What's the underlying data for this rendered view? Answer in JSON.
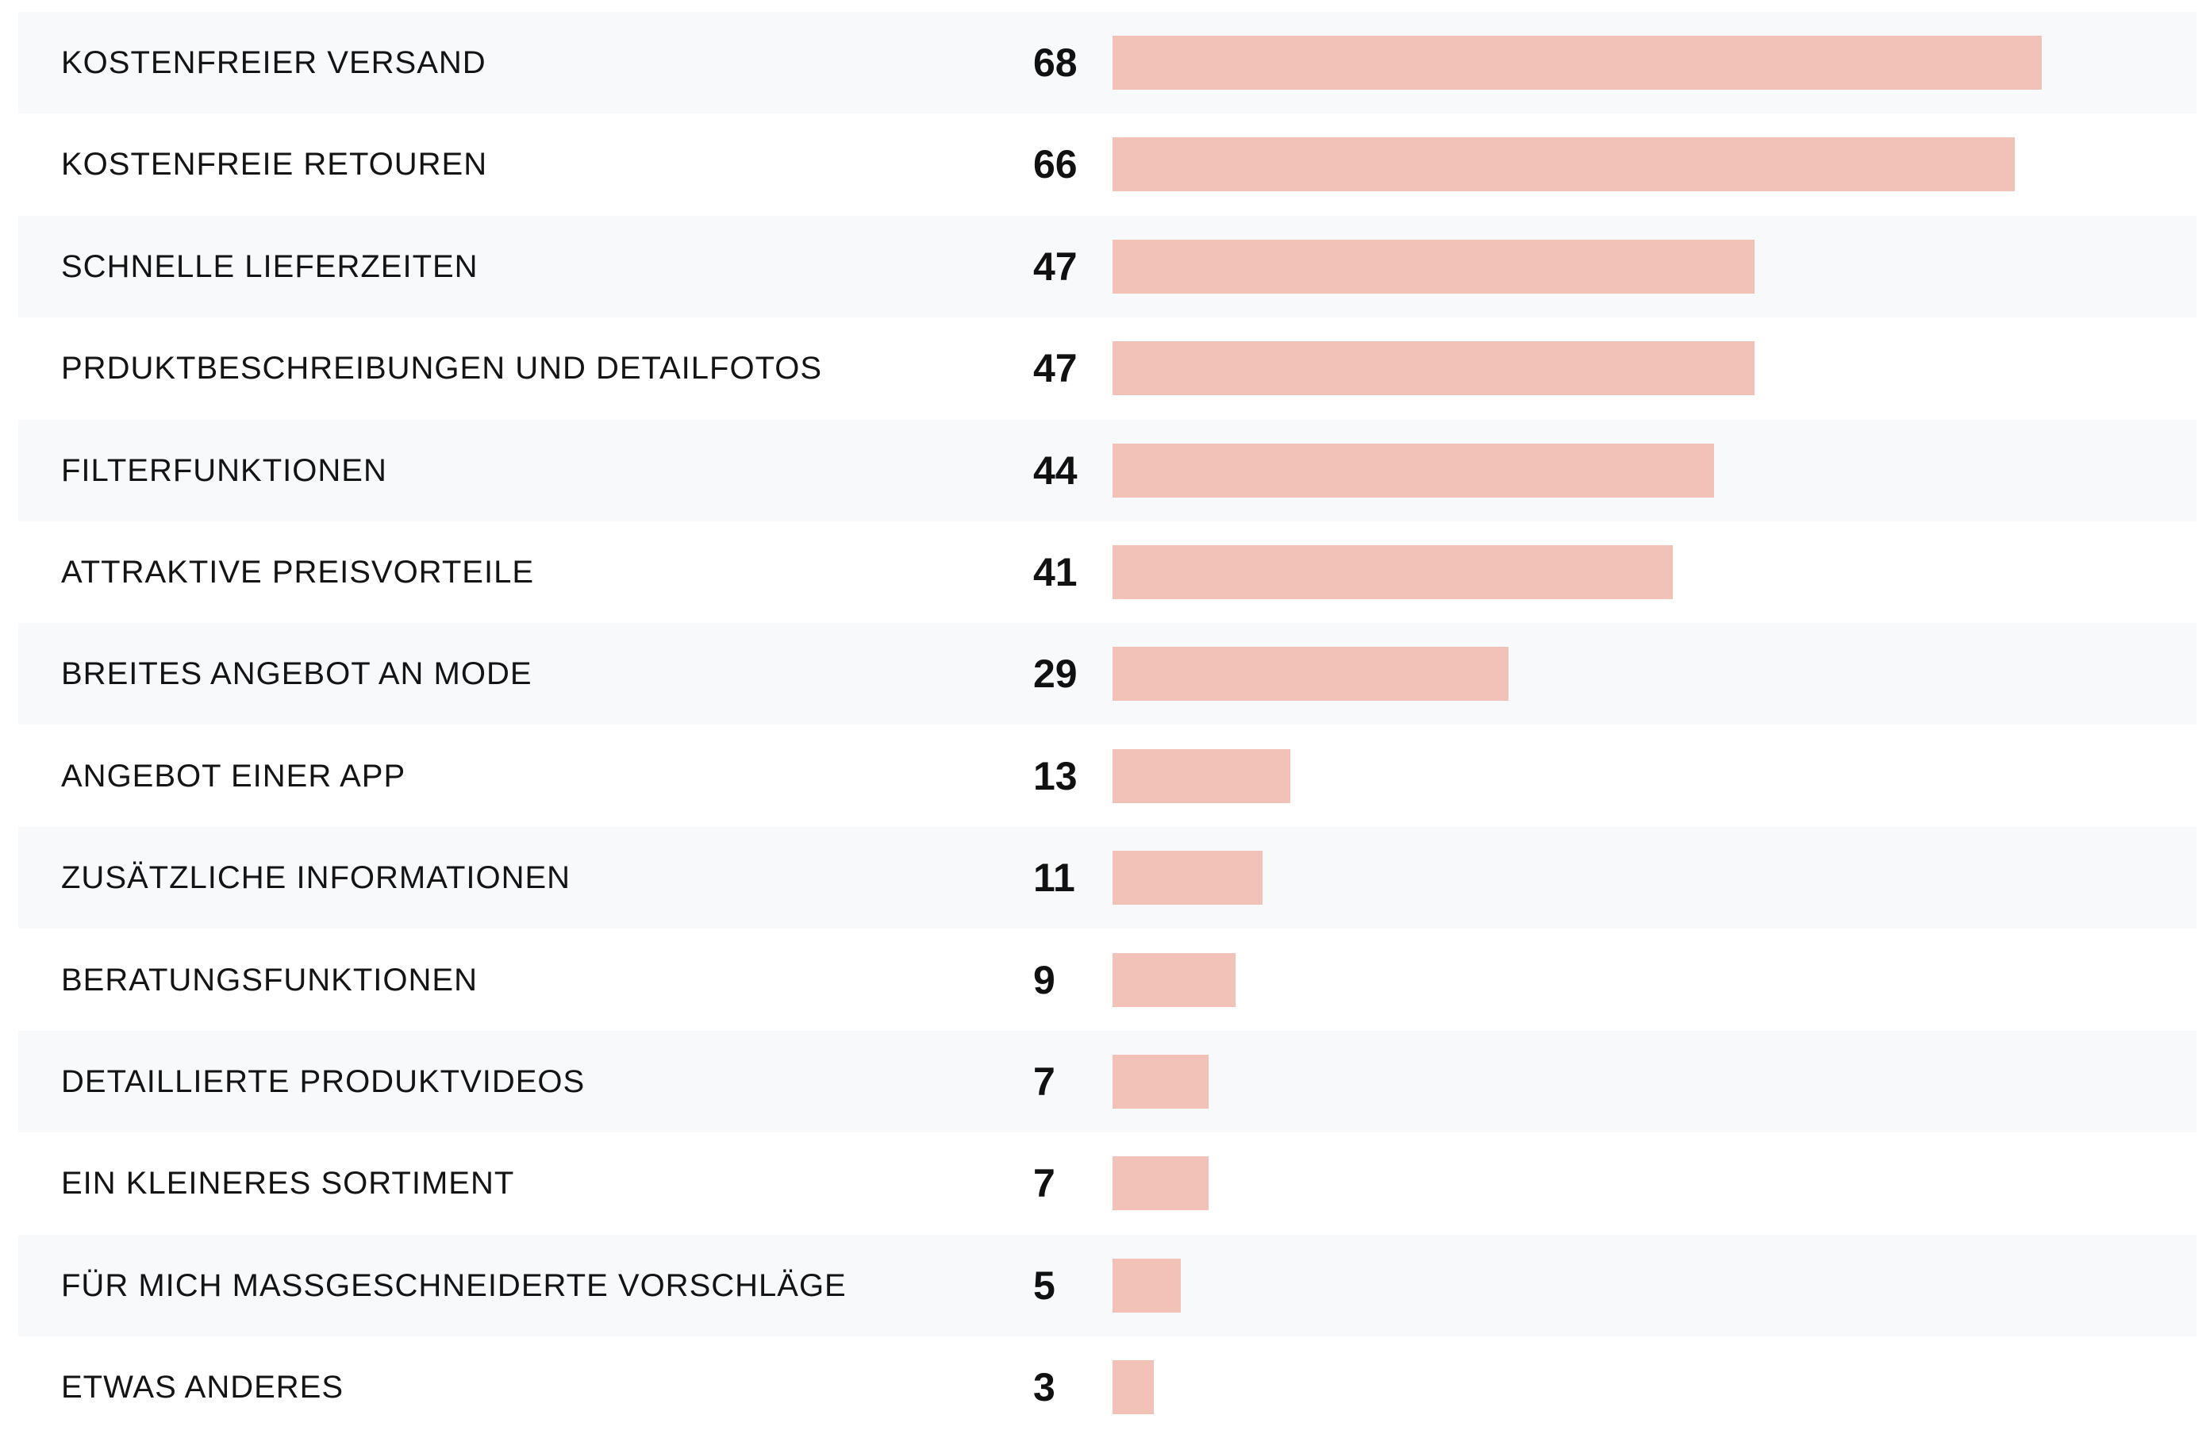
{
  "colors": {
    "bar": "#f2c2b8",
    "row_shade": "#f7f9fb",
    "text": "#141414"
  },
  "chart_data": {
    "type": "bar",
    "orientation": "horizontal",
    "categories": [
      "KOSTENFREIER VERSAND",
      "KOSTENFREIE RETOUREN",
      "SCHNELLE LIEFERZEITEN",
      "PRDUKTBESCHREIBUNGEN UND DETAILFOTOS",
      "FILTERFUNKTIONEN",
      "ATTRAKTIVE PREISVORTEILE",
      "BREITES ANGEBOT AN MODE",
      "ANGEBOT EINER APP",
      "ZUSÄTZLICHE INFORMATIONEN",
      "BERATUNGSFUNKTIONEN",
      "DETAILLIERTE PRODUKTVIDEOS",
      "EIN KLEINERES SORTIMENT",
      "FÜR MICH MASSGESCHNEIDERTE VORSCHLÄGE",
      "ETWAS ANDERES"
    ],
    "values": [
      68,
      66,
      47,
      47,
      44,
      41,
      29,
      13,
      11,
      9,
      7,
      7,
      5,
      3
    ],
    "value_labels": [
      "68",
      "66",
      "47",
      "47",
      "44",
      "41",
      "29",
      "13",
      "11",
      "9",
      "7",
      "7",
      "5",
      "3"
    ],
    "xlim": [
      0,
      100
    ],
    "grid": false,
    "legend": "none"
  }
}
